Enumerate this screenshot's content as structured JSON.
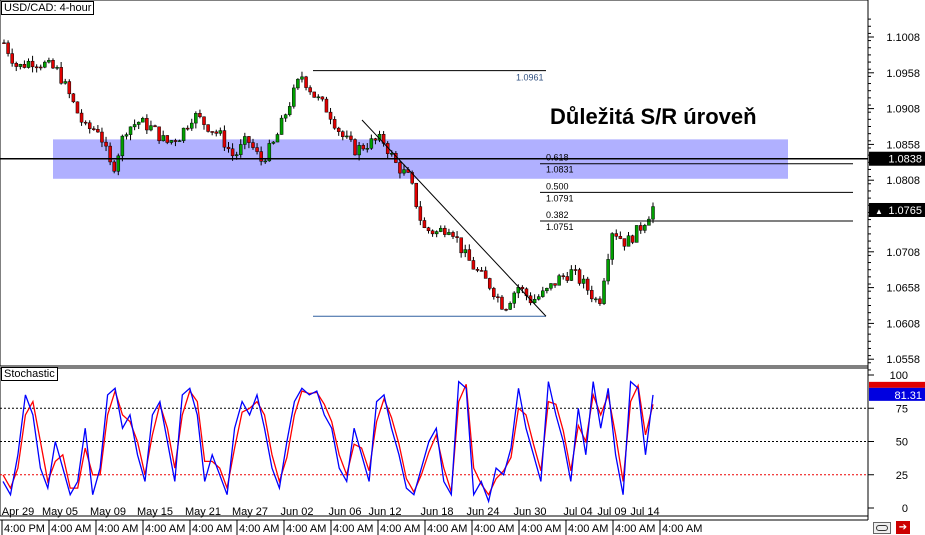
{
  "window_title": "USD/CAD: 4-hour",
  "annotation": "Důležitá S/R úroveň",
  "colors": {
    "up": "#00a000",
    "down": "#e00000",
    "zone": "#b0b0ff",
    "k_line": "#0000ff",
    "d_line": "#ff0000",
    "current_box": "#000000",
    "stoch_box": "#0000e0"
  },
  "icons": {
    "bottom_left_button": "link-icon",
    "bottom_right_button": "scroll-to-end-icon"
  },
  "chart_data": [
    {
      "type": "candlestick",
      "title": "USD/CAD: 4-hour",
      "ylim": [
        1.0535,
        1.104
      ],
      "y_ticks": [
        "1.1008",
        "1.0958",
        "1.0908",
        "1.0858",
        "1.0808",
        "1.0758",
        "1.0708",
        "1.0658",
        "1.0608",
        "1.0558"
      ],
      "x_ticks": [
        "Apr 29",
        "May 05",
        "May 09",
        "May 15",
        "May 21",
        "May 27",
        "Jun 02",
        "Jun 06",
        "Jun 12",
        "Jun 18",
        "Jun 24",
        "Jun 30",
        "Jul 04",
        "Jul 09",
        "Jul 14"
      ],
      "x_subticks": [
        "4:00 PM",
        "4:00 AM",
        "4:00 AM",
        "4:00 AM",
        "4:00 AM",
        "4:00 AM",
        "4:00 AM",
        "4:00 AM",
        "4:00 AM",
        "4:00 AM",
        "4:00 AM",
        "4:00 AM",
        "4:00 AM",
        "4:00 AM",
        "4:00 AM"
      ],
      "price_path": [
        1.1,
        1.0965,
        1.0975,
        1.097,
        1.096,
        1.092,
        1.088,
        1.088,
        1.082,
        1.088,
        1.089,
        1.088,
        1.086,
        1.087,
        1.09,
        1.0885,
        1.087,
        1.084,
        1.0865,
        1.0835,
        1.086,
        1.091,
        1.0955,
        1.0925,
        1.0905,
        1.087,
        1.085,
        1.086,
        1.0865,
        1.083,
        1.081,
        1.074,
        1.0735,
        1.0745,
        1.0705,
        1.068,
        1.066,
        1.063,
        1.066,
        1.064,
        1.065,
        1.067,
        1.068,
        1.066,
        1.0635,
        1.074,
        1.072,
        1.074,
        1.077
      ],
      "support_resistance_zone": [
        1.081,
        1.0865
      ],
      "horizontal_line": 1.0838,
      "current_price": "1.0765",
      "line_price_label": "1.0838",
      "fibonacci": {
        "high": "1.0961",
        "low": 1.0618,
        "levels": [
          {
            "ratio": "0.618",
            "price": "1.0831"
          },
          {
            "ratio": "0.500",
            "price": "1.0791"
          },
          {
            "ratio": "0.382",
            "price": "1.0751"
          }
        ]
      }
    },
    {
      "type": "line",
      "title": "Stochastic",
      "ylim": [
        0,
        100
      ],
      "y_ticks": [
        "100",
        "75",
        "50",
        "25",
        "0"
      ],
      "levels": [
        75,
        50,
        25
      ],
      "current_k": "81.31",
      "k_values": [
        20,
        10,
        40,
        85,
        70,
        30,
        15,
        50,
        30,
        10,
        20,
        60,
        10,
        30,
        85,
        90,
        60,
        70,
        40,
        20,
        70,
        80,
        50,
        20,
        85,
        90,
        70,
        20,
        40,
        25,
        10,
        60,
        80,
        70,
        85,
        60,
        30,
        15,
        50,
        80,
        90,
        85,
        88,
        70,
        60,
        30,
        20,
        60,
        40,
        20,
        80,
        85,
        60,
        40,
        15,
        10,
        30,
        50,
        60,
        20,
        10,
        95,
        90,
        10,
        20,
        5,
        30,
        25,
        45,
        90,
        60,
        40,
        20,
        95,
        70,
        50,
        20,
        75,
        40,
        95,
        60,
        90,
        40,
        10,
        95,
        90,
        40,
        85
      ],
      "d_values": [
        25,
        15,
        30,
        70,
        80,
        50,
        20,
        35,
        40,
        15,
        15,
        45,
        25,
        25,
        70,
        88,
        70,
        65,
        50,
        25,
        55,
        78,
        60,
        30,
        70,
        88,
        80,
        35,
        35,
        30,
        15,
        45,
        72,
        75,
        80,
        70,
        40,
        20,
        38,
        70,
        88,
        86,
        87,
        78,
        65,
        40,
        25,
        48,
        45,
        28,
        65,
        82,
        68,
        48,
        22,
        12,
        25,
        42,
        55,
        30,
        12,
        80,
        93,
        30,
        18,
        10,
        22,
        28,
        38,
        75,
        70,
        48,
        28,
        80,
        78,
        58,
        28,
        62,
        50,
        85,
        70,
        85,
        55,
        20,
        80,
        92,
        55,
        78
      ]
    }
  ]
}
